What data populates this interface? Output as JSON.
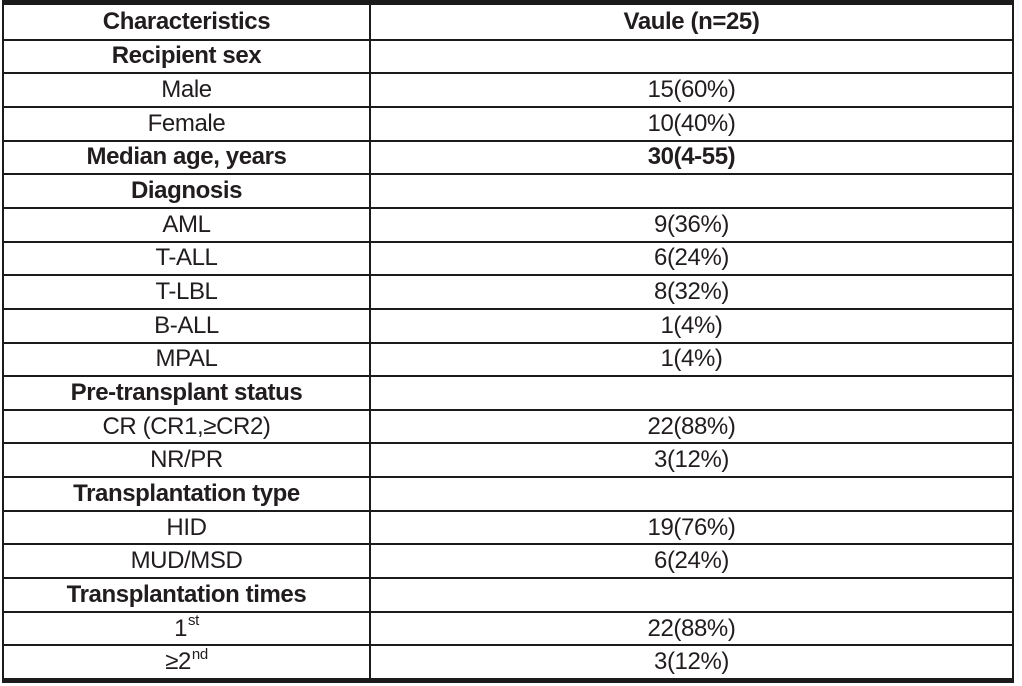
{
  "table": {
    "rows": [
      {
        "type": "header",
        "label": "Characteristics",
        "value": "Vaule (n=25)"
      },
      {
        "type": "section",
        "label": "Recipient sex",
        "value": ""
      },
      {
        "type": "data",
        "label": "Male",
        "value": "15(60%)"
      },
      {
        "type": "data",
        "label": "Female",
        "value": "10(40%)"
      },
      {
        "type": "section",
        "label": "Median age, years",
        "value": "30(4-55)"
      },
      {
        "type": "section",
        "label": "Diagnosis",
        "value": ""
      },
      {
        "type": "data",
        "label": "AML",
        "value": "9(36%)"
      },
      {
        "type": "data",
        "label": "T-ALL",
        "value": "6(24%)"
      },
      {
        "type": "data",
        "label": "T-LBL",
        "value": "8(32%)"
      },
      {
        "type": "data",
        "label": "B-ALL",
        "value": "1(4%)"
      },
      {
        "type": "data",
        "label": "MPAL",
        "value": "1(4%)"
      },
      {
        "type": "section",
        "label": "Pre-transplant status",
        "value": ""
      },
      {
        "type": "data",
        "label": "CR (CR1,≥CR2)",
        "value": "22(88%)"
      },
      {
        "type": "data",
        "label": "NR/PR",
        "value": "3(12%)"
      },
      {
        "type": "section",
        "label": "Transplantation type",
        "value": ""
      },
      {
        "type": "data",
        "label": "HID",
        "value": "19(76%)"
      },
      {
        "type": "data",
        "label": "MUD/MSD",
        "value": "6(24%)"
      },
      {
        "type": "section",
        "label": "Transplantation times",
        "value": ""
      },
      {
        "type": "data",
        "label": "1",
        "label_sup": "st",
        "value": "22(88%)"
      },
      {
        "type": "data",
        "label": "≥2",
        "label_sup": "nd",
        "value": "3(12%)"
      }
    ]
  },
  "colors": {
    "text": "#211d1e",
    "border": "#1b1b1b",
    "background": "#ffffff"
  }
}
